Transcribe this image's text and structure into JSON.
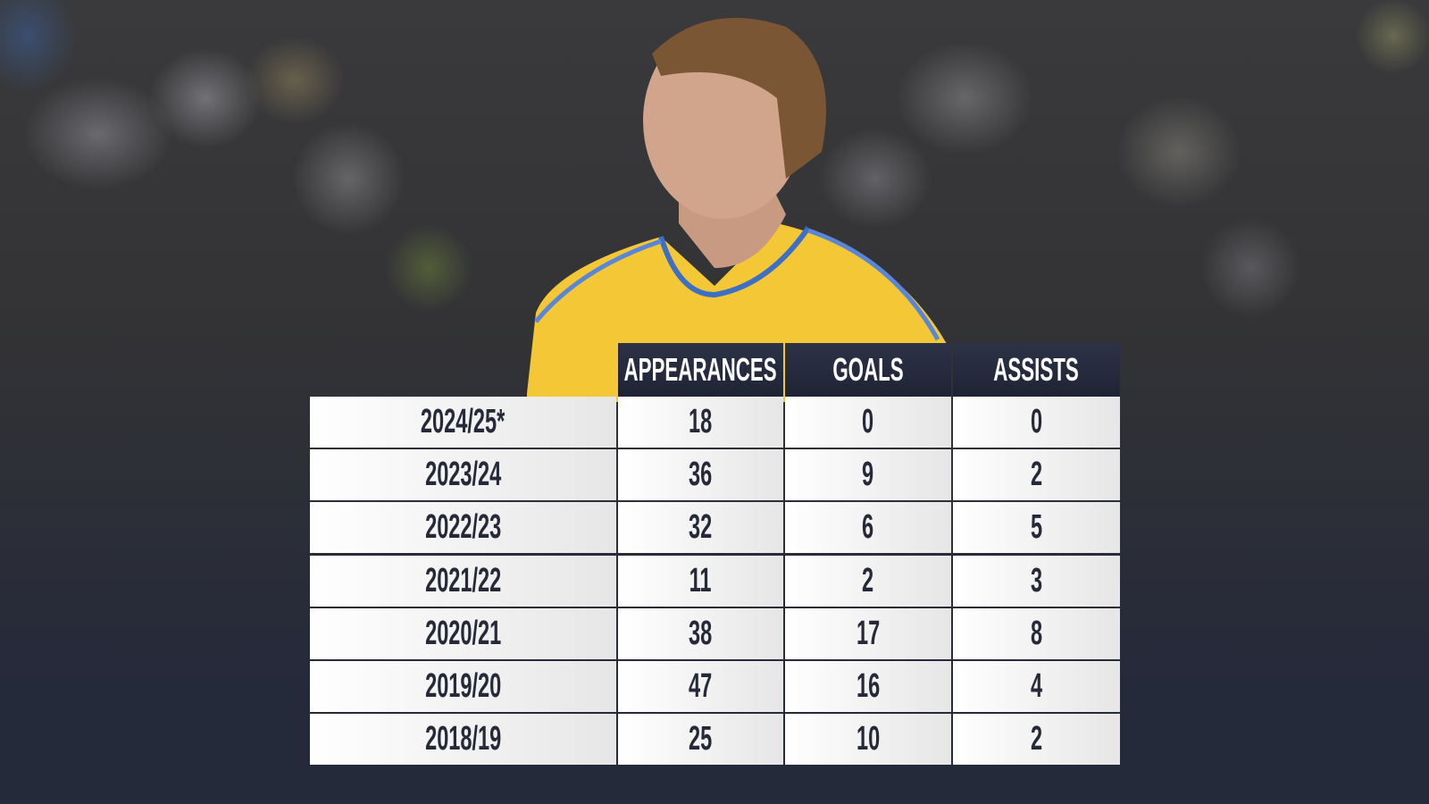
{
  "chart_data": {
    "type": "table",
    "columns": [
      "",
      "APPEARANCES",
      "GOALS",
      "ASSISTS"
    ],
    "rows": [
      {
        "season": "2024/25*",
        "appearances": "18",
        "goals": "0",
        "assists": "0"
      },
      {
        "season": "2023/24",
        "appearances": "36",
        "goals": "9",
        "assists": "2"
      },
      {
        "season": "2022/23",
        "appearances": "32",
        "goals": "6",
        "assists": "5"
      },
      {
        "season": "2021/22",
        "appearances": "11",
        "goals": "2",
        "assists": "3"
      },
      {
        "season": "2020/21",
        "appearances": "38",
        "goals": "17",
        "assists": "8"
      },
      {
        "season": "2019/20",
        "appearances": "47",
        "goals": "16",
        "assists": "4"
      },
      {
        "season": "2018/19",
        "appearances": "25",
        "goals": "10",
        "assists": "2"
      }
    ]
  },
  "colors": {
    "header_bg": "#232838",
    "cell_bg": "#f2f2f2",
    "text": "#262a38",
    "shirt": "#f5c93a",
    "background": "#252a3a"
  }
}
